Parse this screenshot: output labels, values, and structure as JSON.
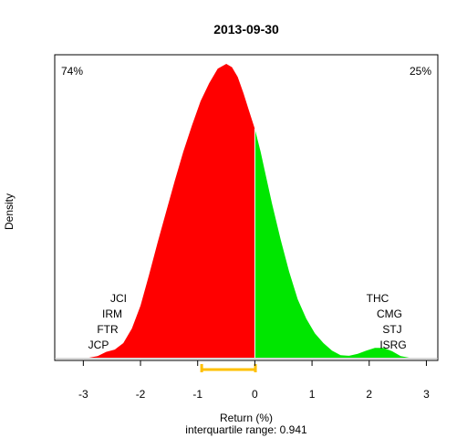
{
  "chart_data": {
    "type": "area",
    "title": "2013-09-30",
    "xlabel": "Return (%)",
    "ylabel": "Density",
    "subtitle": "interquartile range: 0.941",
    "xlim": [
      -3.5,
      3.2
    ],
    "xticks": [
      -3,
      -2,
      -1,
      0,
      1,
      2,
      3
    ],
    "grid": false,
    "split_at": 0,
    "negative_share": "74%",
    "positive_share": "25%",
    "colors": {
      "negative": "#ff0000",
      "positive": "#00e600",
      "iqr": "#ffc000",
      "negative_text": "#ff0000",
      "positive_text": "#008000"
    },
    "iqr_range": [
      -0.93,
      0.01
    ],
    "density": {
      "x": [
        -2.9,
        -2.75,
        -2.6,
        -2.45,
        -2.3,
        -2.15,
        -2.0,
        -1.85,
        -1.7,
        -1.55,
        -1.4,
        -1.25,
        -1.1,
        -0.95,
        -0.8,
        -0.65,
        -0.5,
        -0.4,
        -0.3,
        -0.2,
        -0.1,
        0.0,
        0.1,
        0.2,
        0.3,
        0.45,
        0.6,
        0.75,
        0.9,
        1.05,
        1.2,
        1.35,
        1.5,
        1.65,
        1.8,
        1.95,
        2.1,
        2.25,
        2.4,
        2.55,
        2.7
      ],
      "y": [
        0.0,
        0.005,
        0.018,
        0.025,
        0.045,
        0.09,
        0.16,
        0.255,
        0.355,
        0.45,
        0.545,
        0.635,
        0.715,
        0.79,
        0.845,
        0.89,
        0.905,
        0.895,
        0.865,
        0.815,
        0.76,
        0.705,
        0.635,
        0.555,
        0.475,
        0.365,
        0.265,
        0.18,
        0.12,
        0.075,
        0.045,
        0.022,
        0.008,
        0.006,
        0.012,
        0.022,
        0.03,
        0.03,
        0.02,
        0.005,
        0.0
      ]
    },
    "left_tail_labels": [
      "JCI",
      "IRM",
      "FTR",
      "JCP"
    ],
    "right_tail_labels": [
      "THC",
      "CMG",
      "STJ",
      "ISRG"
    ]
  }
}
